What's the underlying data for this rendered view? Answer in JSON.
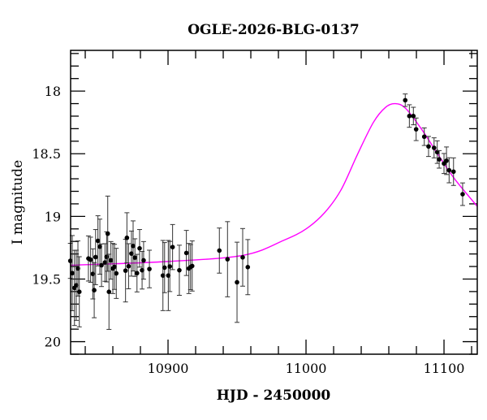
{
  "chart_data": {
    "type": "scatter",
    "title": "OGLE-2026-BLG-0137",
    "xlabel": "HJD - 2450000",
    "ylabel": "I magnitude",
    "xlim": [
      10829.4,
      11124.1
    ],
    "ylim": [
      20.1,
      17.675
    ],
    "y_inverted": true,
    "x_ticks": [
      10900,
      11000,
      11100
    ],
    "x_minor_step": 20,
    "y_ticks": [
      18,
      18.5,
      19,
      19.5,
      20
    ],
    "y_tick_labels": [
      "18",
      "18.5",
      "19",
      "19.5",
      "20"
    ],
    "y_minor_step": 0.1,
    "grid": false,
    "colors": {
      "data": "#000000",
      "model": "#ff00ff"
    },
    "series": [
      {
        "kind": "points_with_errorbars",
        "x": [
          10829.2,
          10830.6,
          10832.2,
          10833.5,
          10834.7,
          10835.7,
          10842.3,
          10843.9,
          10845.5,
          10846.5,
          10847.5,
          10849.2,
          10850.6,
          10851.8,
          10854.3,
          10855.5,
          10856.3,
          10857.2,
          10858.6,
          10860.0,
          10861.2,
          10862.5,
          10869.2,
          10870.2,
          10871.4,
          10873.5,
          10874.7,
          10876.0,
          10877.5,
          10879.4,
          10881.2,
          10882.3,
          10886.5,
          10896.3,
          10897.5,
          10900.2,
          10901.3,
          10903.3,
          10908.2,
          10913.3,
          10915.1,
          10916.3,
          10917.5,
          10937.2,
          10943.1,
          10950.0,
          10954.1,
          10957.8,
          11071.9,
          11074.9,
          11077.8,
          11079.8,
          11085.7,
          11088.8,
          11092.8,
          11095.1,
          11096.5,
          11100.0,
          11101.8,
          11103.7,
          11106.9,
          11113.5
        ],
        "y": [
          19.355,
          19.453,
          19.571,
          19.55,
          19.416,
          19.602,
          19.336,
          19.346,
          19.459,
          19.589,
          19.325,
          19.195,
          19.242,
          19.39,
          19.368,
          19.323,
          19.138,
          19.602,
          19.351,
          19.416,
          19.403,
          19.455,
          19.433,
          19.171,
          19.398,
          19.297,
          19.236,
          19.329,
          19.453,
          19.255,
          19.43,
          19.351,
          19.42,
          19.472,
          19.409,
          19.472,
          19.4,
          19.245,
          19.43,
          19.292,
          19.416,
          19.405,
          19.396,
          19.273,
          19.342,
          19.526,
          19.327,
          19.405,
          18.073,
          18.199,
          18.199,
          18.305,
          18.364,
          18.442,
          18.453,
          18.487,
          18.545,
          18.578,
          18.556,
          18.632,
          18.643,
          18.823
        ],
        "yerr": [
          0.14,
          0.3,
          0.3,
          0.28,
          0.22,
          0.28,
          0.18,
          0.18,
          0.2,
          0.22,
          0.22,
          0.2,
          0.22,
          0.17,
          0.15,
          0.2,
          0.3,
          0.3,
          0.15,
          0.2,
          0.18,
          0.2,
          0.25,
          0.2,
          0.18,
          0.18,
          0.2,
          0.15,
          0.15,
          0.15,
          0.15,
          0.15,
          0.15,
          0.28,
          0.2,
          0.28,
          0.2,
          0.18,
          0.2,
          0.18,
          0.2,
          0.18,
          0.2,
          0.18,
          0.3,
          0.32,
          0.23,
          0.22,
          0.05,
          0.09,
          0.07,
          0.09,
          0.07,
          0.08,
          0.08,
          0.09,
          0.07,
          0.08,
          0.11,
          0.1,
          0.11,
          0.09
        ]
      },
      {
        "kind": "model_curve",
        "x": [
          10829.4,
          10900,
          10954.7,
          10984.1,
          11000,
          11013.5,
          11025.3,
          11037.1,
          11048.8,
          11057.6,
          11064.7,
          11072.4,
          11084.1,
          11095.9,
          11107.6,
          11124.1
        ],
        "y": [
          19.39,
          19.36,
          19.31,
          19.19,
          19.1,
          18.97,
          18.79,
          18.51,
          18.25,
          18.13,
          18.1,
          18.14,
          18.31,
          18.51,
          18.7,
          18.92
        ]
      }
    ]
  }
}
